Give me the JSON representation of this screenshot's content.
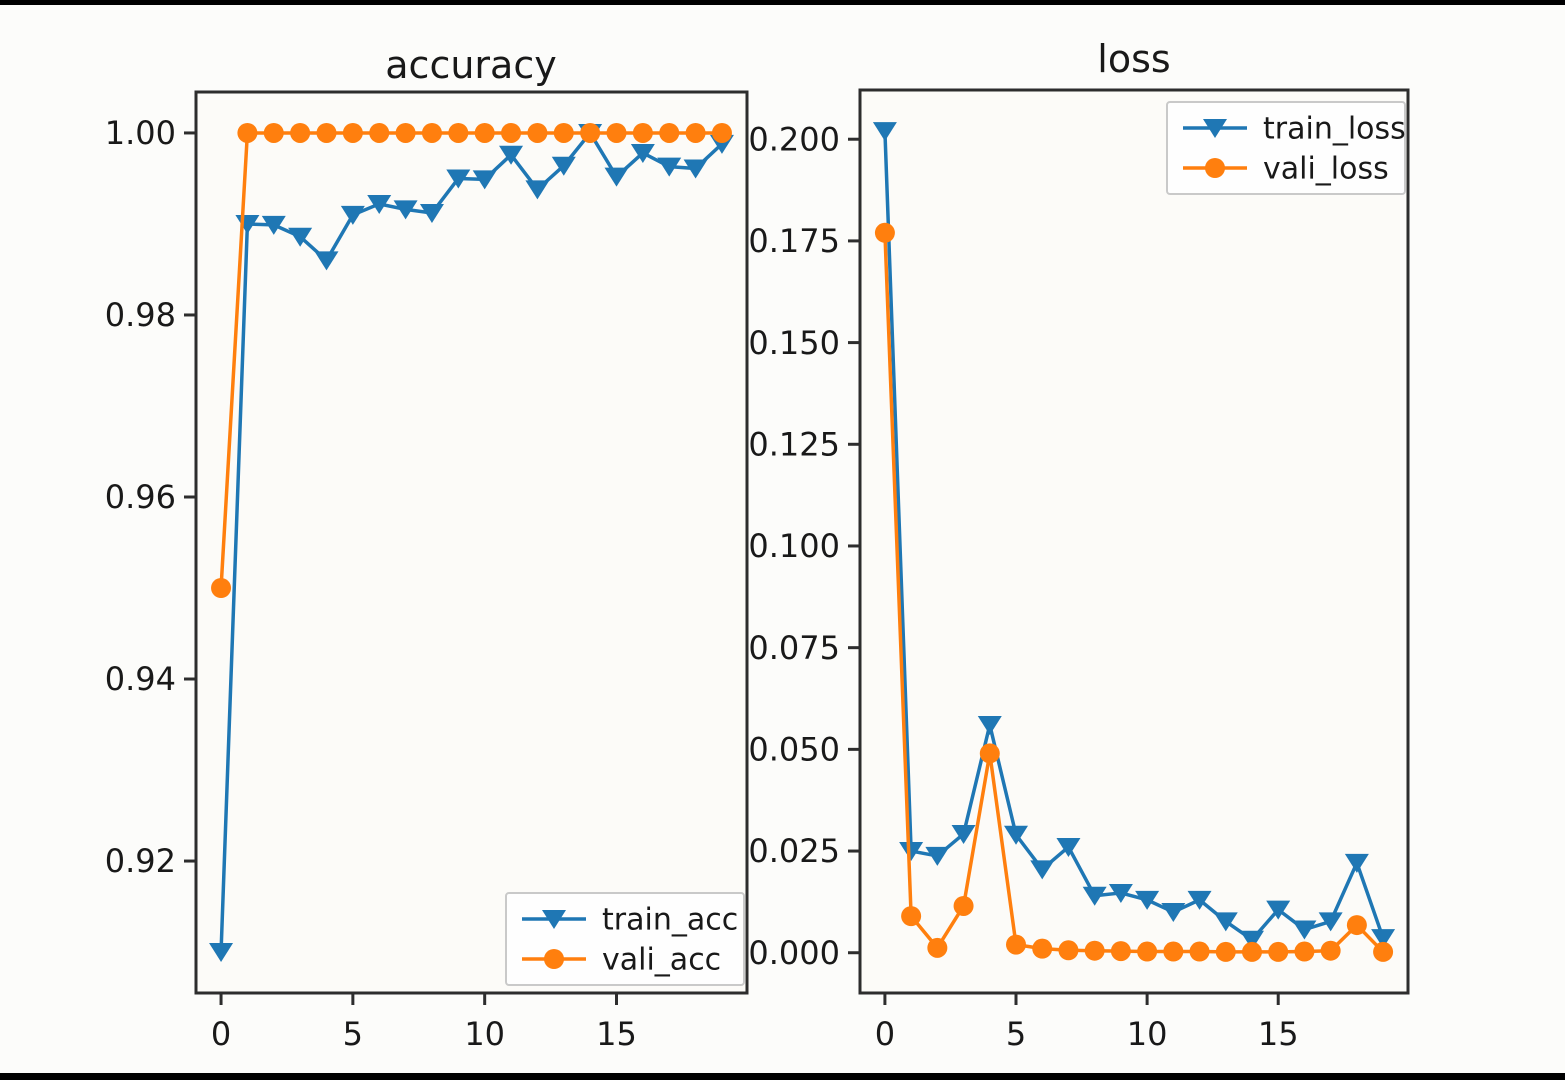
{
  "figure": {
    "background": "#fcfcfa",
    "letterbox_color": "#000000",
    "plot_bg": "#fcfbf8"
  },
  "colors": {
    "train_series": "#1f77b4",
    "vali_series": "#ff7f0e",
    "axis": "#2d2d2d",
    "text": "#191919",
    "legend_border": "#c9c9c9",
    "legend_fill": "#fefefe"
  },
  "chart_data": [
    {
      "type": "line",
      "title": "accuracy",
      "xlabel": "",
      "ylabel": "",
      "grid": false,
      "x": [
        0,
        1,
        2,
        3,
        4,
        5,
        6,
        7,
        8,
        9,
        10,
        11,
        12,
        13,
        14,
        15,
        16,
        17,
        18,
        19
      ],
      "xlim": [
        -0.95,
        19.95
      ],
      "ylim": [
        0.9055,
        1.0045
      ],
      "xticks": [
        {
          "v": 0,
          "label": "0"
        },
        {
          "v": 5,
          "label": "5"
        },
        {
          "v": 10,
          "label": "10"
        },
        {
          "v": 15,
          "label": "15"
        }
      ],
      "yticks": [
        {
          "v": 1.0,
          "label": "1.00"
        },
        {
          "v": 0.98,
          "label": "0.98"
        },
        {
          "v": 0.96,
          "label": "0.96"
        },
        {
          "v": 0.94,
          "label": "0.94"
        },
        {
          "v": 0.92,
          "label": "0.92"
        }
      ],
      "legend": {
        "position": "lower right",
        "entries": [
          "train_acc",
          "vali_acc"
        ]
      },
      "series": [
        {
          "name": "train_acc",
          "color": "#1f77b4",
          "marker": "triangle-down",
          "values": [
            0.91,
            0.99,
            0.9899,
            0.9886,
            0.986,
            0.991,
            0.9922,
            0.9916,
            0.9912,
            0.995,
            0.9949,
            0.9976,
            0.9938,
            0.9964,
            1.0,
            0.9952,
            0.9978,
            0.9963,
            0.9961,
            0.9988
          ]
        },
        {
          "name": "vali_acc",
          "color": "#ff7f0e",
          "marker": "circle",
          "values": [
            0.95,
            1.0,
            1.0,
            1.0,
            1.0,
            1.0,
            1.0,
            1.0,
            1.0,
            1.0,
            1.0,
            1.0,
            1.0,
            1.0,
            1.0,
            1.0,
            1.0,
            1.0,
            1.0,
            1.0
          ]
        }
      ]
    },
    {
      "type": "line",
      "title": "loss",
      "xlabel": "",
      "ylabel": "",
      "grid": false,
      "x": [
        0,
        1,
        2,
        3,
        4,
        5,
        6,
        7,
        8,
        9,
        10,
        11,
        12,
        13,
        14,
        15,
        16,
        17,
        18,
        19
      ],
      "xlim": [
        -0.95,
        19.95
      ],
      "ylim": [
        -0.0099,
        0.2121
      ],
      "xticks": [
        {
          "v": 0,
          "label": "0"
        },
        {
          "v": 5,
          "label": "5"
        },
        {
          "v": 10,
          "label": "10"
        },
        {
          "v": 15,
          "label": "15"
        }
      ],
      "yticks": [
        {
          "v": 0.2,
          "label": "0.200"
        },
        {
          "v": 0.175,
          "label": "0.175"
        },
        {
          "v": 0.15,
          "label": "0.150"
        },
        {
          "v": 0.125,
          "label": "0.125"
        },
        {
          "v": 0.1,
          "label": "0.100"
        },
        {
          "v": 0.075,
          "label": "0.075"
        },
        {
          "v": 0.05,
          "label": "0.050"
        },
        {
          "v": 0.025,
          "label": "0.025"
        },
        {
          "v": 0.0,
          "label": "0.000"
        }
      ],
      "legend": {
        "position": "upper right",
        "entries": [
          "train_loss",
          "vali_loss"
        ]
      },
      "series": [
        {
          "name": "train_loss",
          "color": "#1f77b4",
          "marker": "triangle-down",
          "values": [
            0.202,
            0.025,
            0.0238,
            0.0292,
            0.056,
            0.029,
            0.0205,
            0.026,
            0.014,
            0.0147,
            0.013,
            0.01,
            0.013,
            0.0077,
            0.0032,
            0.0106,
            0.0057,
            0.0077,
            0.0221,
            0.0036
          ]
        },
        {
          "name": "vali_loss",
          "color": "#ff7f0e",
          "marker": "circle",
          "values": [
            0.177,
            0.009,
            0.0012,
            0.0115,
            0.049,
            0.002,
            0.001,
            0.0006,
            0.0005,
            0.0004,
            0.0003,
            0.0003,
            0.0003,
            0.0002,
            0.0002,
            0.0002,
            0.0003,
            0.0005,
            0.0068,
            0.0002
          ]
        }
      ]
    }
  ]
}
